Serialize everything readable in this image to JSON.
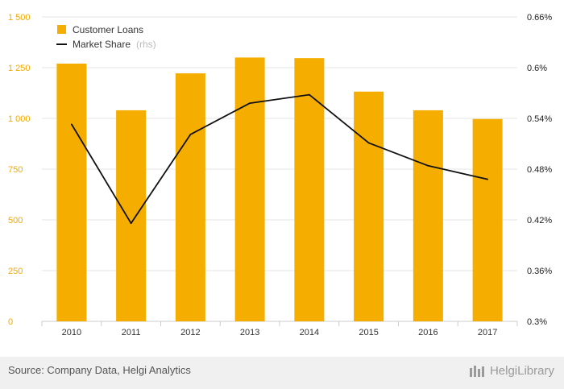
{
  "chart_data": {
    "type": "bar",
    "categories": [
      "2010",
      "2011",
      "2012",
      "2013",
      "2014",
      "2015",
      "2016",
      "2017"
    ],
    "series": [
      {
        "name": "Customer Loans",
        "type": "bar",
        "axis": "left",
        "color": "#f5ae00",
        "values": [
          1270,
          1040,
          1222,
          1300,
          1297,
          1132,
          1040,
          997
        ]
      },
      {
        "name": "Market Share",
        "type": "line",
        "axis": "right",
        "color": "#111111",
        "values": [
          0.533,
          0.416,
          0.521,
          0.558,
          0.568,
          0.511,
          0.484,
          0.468
        ]
      }
    ],
    "left_axis": {
      "ticks": [
        "0",
        "250",
        "500",
        "750",
        "1 000",
        "1 250",
        "1 500"
      ],
      "tick_values": [
        0,
        250,
        500,
        750,
        1000,
        1250,
        1500
      ],
      "ylim": [
        0,
        1500
      ]
    },
    "right_axis": {
      "ticks": [
        "0.3%",
        "0.36%",
        "0.42%",
        "0.48%",
        "0.54%",
        "0.6%",
        "0.66%"
      ],
      "tick_values": [
        0.3,
        0.36,
        0.42,
        0.48,
        0.54,
        0.6,
        0.66
      ],
      "ylim": [
        0.3,
        0.66
      ]
    },
    "legend": {
      "placement": "top-left",
      "items": [
        "Customer Loans",
        "Market Share"
      ],
      "rhs_note": "(rhs)"
    },
    "grid": true
  },
  "footer": {
    "source": "Source: Company Data, Helgi Analytics",
    "logo_text": "HelgiLibrary"
  }
}
